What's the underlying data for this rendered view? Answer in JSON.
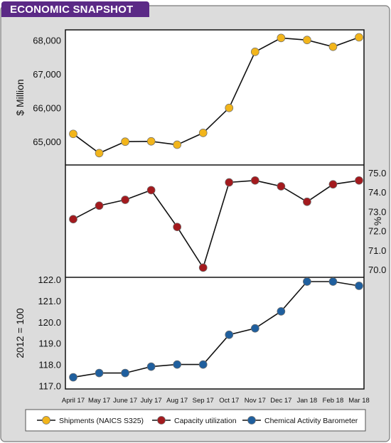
{
  "header": {
    "title": "ECONOMIC SNAPSHOT"
  },
  "chart_data": [
    {
      "type": "line",
      "ylabel": "$ Million",
      "ylim": [
        64300,
        68300
      ],
      "yticks": [
        "65,000",
        "66,000",
        "67,000",
        "68,000"
      ],
      "ytick_values": [
        65000,
        66000,
        67000,
        68000
      ],
      "x": [
        "April 17",
        "May 17",
        "June 17",
        "July 17",
        "Aug 17",
        "Sep 17",
        "Oct 17",
        "Nov 17",
        "Dec 17",
        "Jan 18",
        "Feb 18",
        "Mar 18"
      ],
      "series": [
        {
          "name": "Shipments (NAICS S325)",
          "color": "#f2b51b",
          "values": [
            65220,
            64650,
            64990,
            65000,
            64900,
            65250,
            65990,
            67650,
            68060,
            68000,
            67800,
            68080
          ]
        }
      ]
    },
    {
      "type": "line",
      "ylabel": "%",
      "ylim": [
        69.6,
        75.4
      ],
      "yticks": [
        "70.0",
        "71.0",
        "72.0",
        "73.0",
        "74.0",
        "75.0"
      ],
      "ytick_values": [
        70,
        71,
        72,
        73,
        74,
        75
      ],
      "x": [
        "April 17",
        "May 17",
        "June 17",
        "July 17",
        "Aug 17",
        "Sep 17",
        "Oct 17",
        "Nov 17",
        "Dec 17",
        "Jan 18",
        "Feb 18",
        "Mar 18"
      ],
      "series": [
        {
          "name": "Capacity utilization",
          "color": "#a31a1e",
          "values": [
            72.6,
            73.3,
            73.6,
            74.1,
            72.2,
            70.1,
            74.5,
            74.6,
            74.3,
            73.5,
            74.4,
            74.6
          ]
        }
      ]
    },
    {
      "type": "line",
      "ylabel": "2012 = 100",
      "ylim": [
        116.85,
        122.1
      ],
      "yticks": [
        "117.0",
        "118.0",
        "119.0",
        "120.0",
        "121.0",
        "122.0"
      ],
      "ytick_values": [
        117,
        118,
        119,
        120,
        121,
        122
      ],
      "x": [
        "April 17",
        "May 17",
        "June 17",
        "July 17",
        "Aug 17",
        "Sep 17",
        "Oct 17",
        "Nov 17",
        "Dec 17",
        "Jan 18",
        "Feb 18",
        "Mar 18"
      ],
      "series": [
        {
          "name": "Chemical Activity Barometer",
          "color": "#1f5f9e",
          "values": [
            117.4,
            117.6,
            117.6,
            117.9,
            118.0,
            118.0,
            119.4,
            119.7,
            120.5,
            121.9,
            121.9,
            121.7
          ]
        }
      ]
    }
  ],
  "legend": [
    {
      "label": "Shipments (NAICS S325)",
      "color": "#f2b51b"
    },
    {
      "label": "Capacity utilization",
      "color": "#a31a1e"
    },
    {
      "label": "Chemical Activity Barometer",
      "color": "#1f5f9e"
    }
  ]
}
